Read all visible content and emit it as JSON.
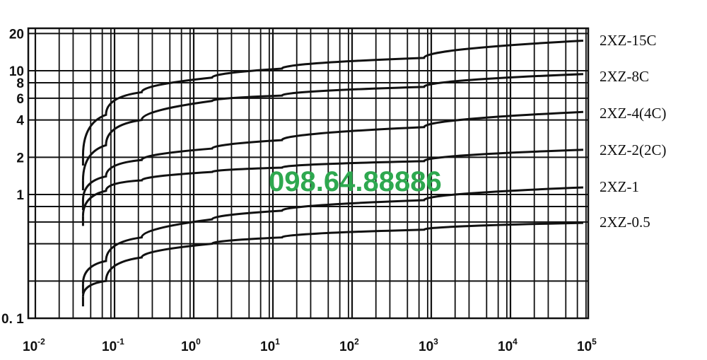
{
  "chart_data": {
    "type": "line",
    "title": "",
    "xlabel": "",
    "ylabel": "",
    "x_scale": "log",
    "y_scale": "log",
    "xlim": [
      0.01,
      100000
    ],
    "ylim": [
      0.1,
      20
    ],
    "grid": true,
    "legend": "labels at right end of each curve",
    "x_ticks": [
      {
        "value": 0.01,
        "base": "10",
        "exp": "-2"
      },
      {
        "value": 0.1,
        "base": "10",
        "exp": "-1"
      },
      {
        "value": 1,
        "base": "10",
        "exp": "0"
      },
      {
        "value": 10,
        "base": "10",
        "exp": "1"
      },
      {
        "value": 100,
        "base": "10",
        "exp": "2"
      },
      {
        "value": 1000,
        "base": "10",
        "exp": "3"
      },
      {
        "value": 10000,
        "base": "10",
        "exp": "4"
      },
      {
        "value": 100000,
        "base": "10",
        "exp": "5"
      }
    ],
    "y_ticks": [
      {
        "value": 20,
        "label": "20"
      },
      {
        "value": 10,
        "label": "10"
      },
      {
        "value": 8,
        "label": "8"
      },
      {
        "value": 6,
        "label": "6"
      },
      {
        "value": 4,
        "label": "4"
      },
      {
        "value": 2,
        "label": "2"
      },
      {
        "value": 1,
        "label": "1"
      },
      {
        "value": 0.1,
        "label": "0. 1"
      }
    ],
    "x": [
      0.04,
      0.078,
      0.22,
      1.7,
      13,
      810,
      83000
    ],
    "series": [
      {
        "name": "2XZ-15C",
        "values": [
          2.06,
          4.4,
          6.7,
          8.8,
          10.4,
          12.7,
          17.5
        ]
      },
      {
        "name": "2XZ-8C",
        "values": [
          1.3,
          2.5,
          4.0,
          5.7,
          6.3,
          7.4,
          9.4
        ]
      },
      {
        "name": "2XZ-4(4C)",
        "values": [
          0.9,
          1.4,
          1.9,
          2.35,
          2.75,
          3.5,
          4.65
        ]
      },
      {
        "name": "2XZ-2(2C)",
        "values": [
          0.67,
          1.07,
          1.3,
          1.52,
          1.65,
          1.86,
          2.3
        ]
      },
      {
        "name": "2XZ-1",
        "values": [
          0.19,
          0.29,
          0.45,
          0.63,
          0.74,
          0.9,
          1.14
        ]
      },
      {
        "name": "2XZ-0.5",
        "values": [
          0.15,
          0.2,
          0.31,
          0.4,
          0.45,
          0.52,
          0.59
        ]
      }
    ],
    "line_color": "#111111"
  },
  "watermark": {
    "text": "098.64.88886",
    "color": "#2ea84f"
  }
}
